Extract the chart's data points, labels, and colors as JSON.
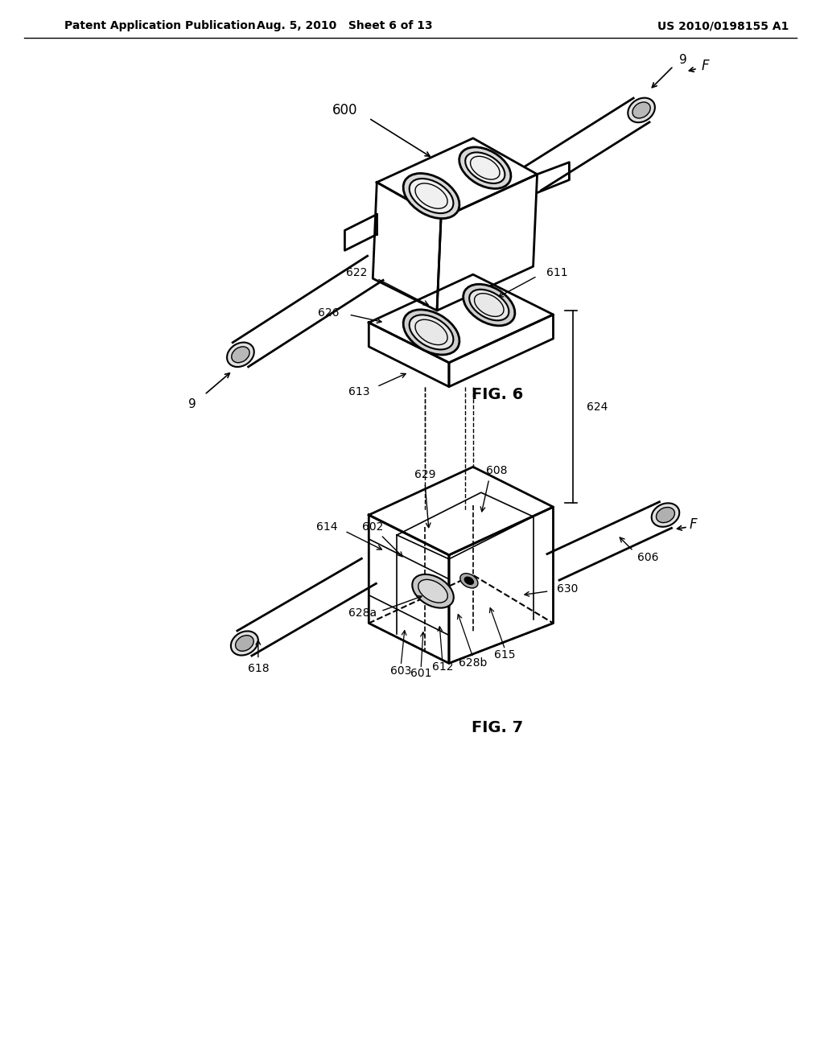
{
  "background_color": "#ffffff",
  "header_left": "Patent Application Publication",
  "header_middle": "Aug. 5, 2010   Sheet 6 of 13",
  "header_right": "US 2010/0198155 A1",
  "fig6_label": "FIG. 6",
  "fig7_label": "FIG. 7",
  "fig6_ref600": "600",
  "fig6_ref9_top": "9",
  "fig6_ref9_bot": "9",
  "fig6_refF": "F",
  "fig7_ref622": "622",
  "fig7_ref611": "611",
  "fig7_ref624": "624",
  "fig7_ref626": "626",
  "fig7_ref613": "613",
  "fig7_ref629": "629",
  "fig7_ref608": "608",
  "fig7_ref614": "614",
  "fig7_ref602": "602",
  "fig7_ref628a": "628a",
  "fig7_ref630": "630",
  "fig7_ref606": "606",
  "fig7_refF": "F",
  "fig7_ref618": "618",
  "fig7_ref603": "603",
  "fig7_ref601": "601",
  "fig7_ref612": "612",
  "fig7_ref628b": "628b",
  "fig7_ref615": "615",
  "line_color": "#000000",
  "text_color": "#000000"
}
